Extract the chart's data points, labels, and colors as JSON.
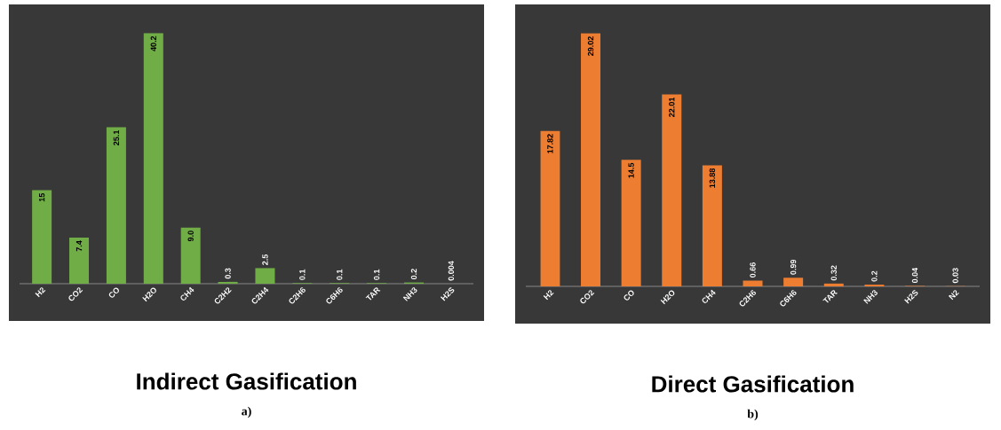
{
  "chart_data": [
    {
      "type": "bar",
      "title": "Indirect Gasification",
      "annotations": [
        "a)"
      ],
      "categories": [
        "H2",
        "CO2",
        "CO",
        "H2O",
        "CH4",
        "C2H2",
        "C2H4",
        "C2H6",
        "C6H6",
        "TAR",
        "NH3",
        "H2S"
      ],
      "values": [
        15,
        7.4,
        25.1,
        40.2,
        9.0,
        0.3,
        2.5,
        0.1,
        0.1,
        0.1,
        0.2,
        0.004
      ],
      "value_labels": [
        "15",
        "7.4",
        "25.1",
        "40.2",
        "9.0",
        "0.3",
        "2.5",
        "0.1",
        "0.1",
        "0.1",
        "0.2",
        "0.004"
      ],
      "color": "#70ad47",
      "tick_labels": "x"
    },
    {
      "type": "bar",
      "title": "Direct Gasification",
      "annotations": [
        "b)"
      ],
      "categories": [
        "H2",
        "CO2",
        "CO",
        "H2O",
        "CH4",
        "C2H6",
        "C6H6",
        "TAR",
        "NH3",
        "H2S",
        "N2"
      ],
      "values": [
        17.82,
        29.02,
        14.5,
        22.01,
        13.88,
        0.66,
        0.99,
        0.32,
        0.2,
        0.04,
        0.03
      ],
      "value_labels": [
        "17.82",
        "29.02",
        "14.5",
        "22.01",
        "13.88",
        "0.66",
        "0.99",
        "0.32",
        "0.2",
        "0.04",
        "0.03"
      ],
      "color": "#ed7d31",
      "tick_labels": "x"
    }
  ]
}
